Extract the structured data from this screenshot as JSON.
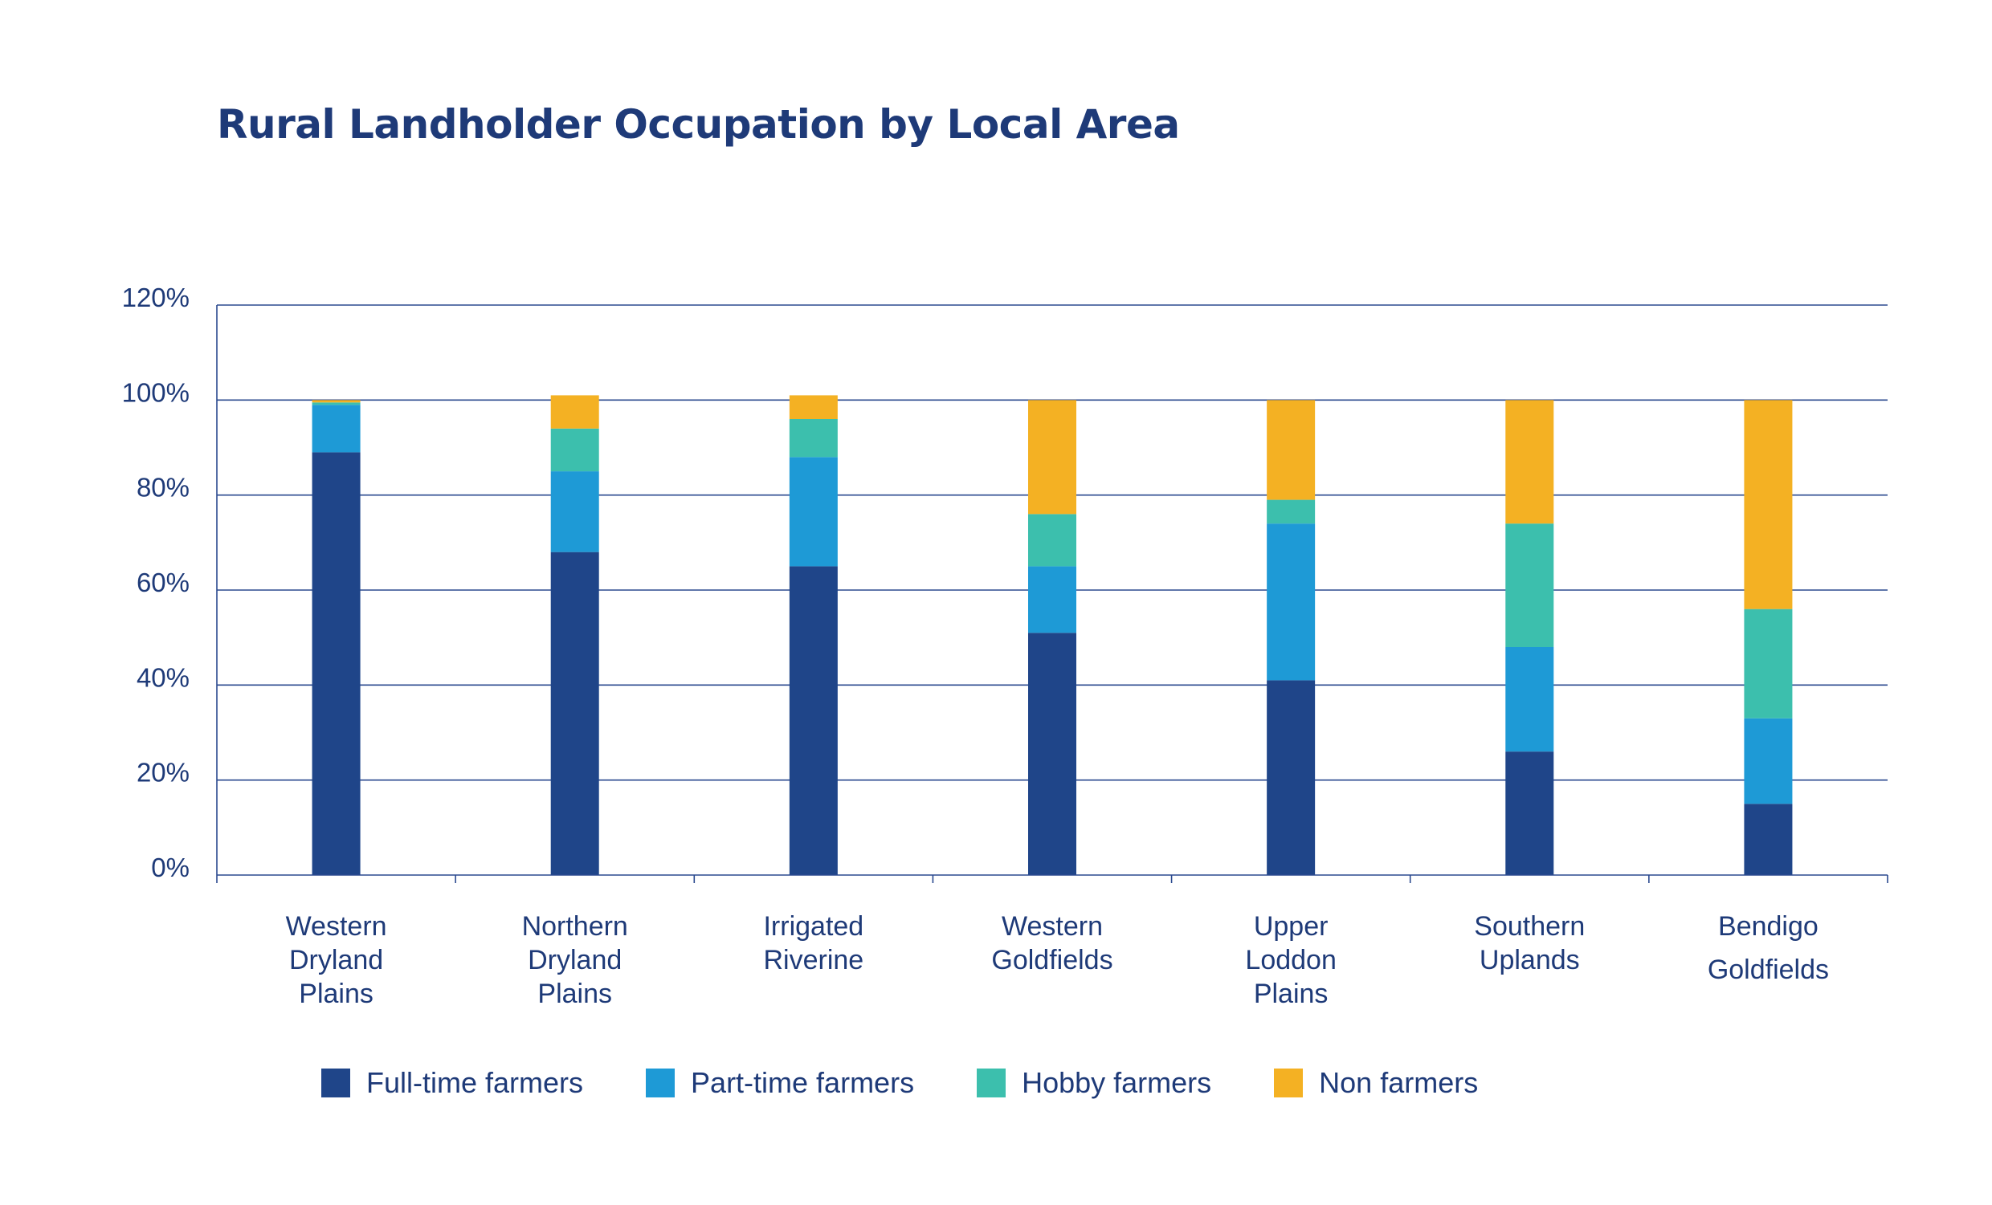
{
  "chart_data": {
    "type": "bar",
    "stacked": true,
    "title": "Rural Landholder Occupation by Local Area",
    "xlabel": "",
    "ylabel": "",
    "ylim": [
      0,
      120
    ],
    "yticks": [
      "0%",
      "20%",
      "40%",
      "60%",
      "80%",
      "100%",
      "120%"
    ],
    "grid": true,
    "legend_position": "bottom",
    "categories": [
      [
        "Western",
        "Dryland",
        "Plains"
      ],
      [
        "Northern",
        "Dryland",
        "Plains"
      ],
      [
        "Irrigated",
        "Riverine"
      ],
      [
        "Western",
        "Goldfields"
      ],
      [
        "Upper",
        "Loddon",
        "Plains"
      ],
      [
        "Southern",
        "Uplands"
      ],
      [
        "Bendigo",
        "Goldfields"
      ]
    ],
    "series": [
      {
        "name": "Full-time farmers",
        "color": "#1f4589",
        "values": [
          89,
          68,
          65,
          51,
          41,
          26,
          15
        ]
      },
      {
        "name": "Part-time farmers",
        "color": "#1e9ad6",
        "values": [
          10,
          17,
          23,
          14,
          33,
          22,
          18
        ]
      },
      {
        "name": "Hobby farmers",
        "color": "#3cbfad",
        "values": [
          0.5,
          9,
          8,
          11,
          5,
          26,
          23
        ]
      },
      {
        "name": "Non farmers",
        "color": "#f4b123",
        "values": [
          0.5,
          7,
          5,
          24,
          21,
          26,
          44
        ]
      }
    ]
  }
}
